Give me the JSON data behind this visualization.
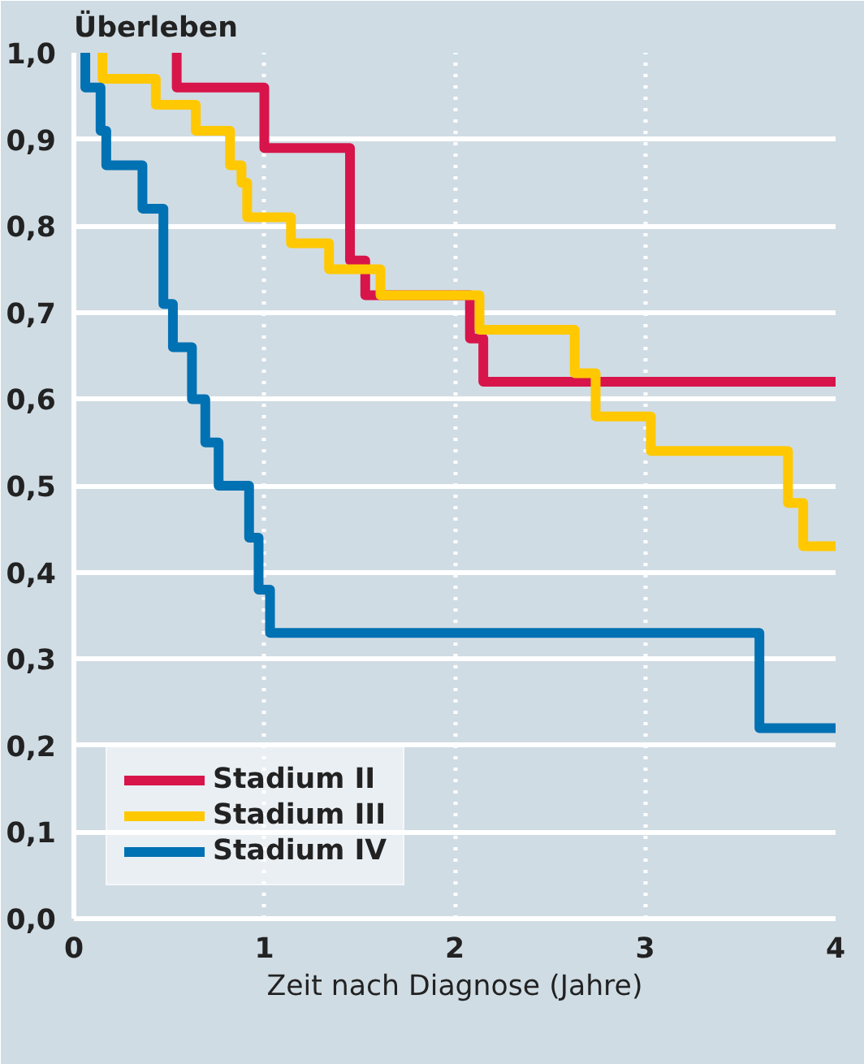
{
  "chart_data": {
    "type": "step",
    "ylabel": "Überleben",
    "xlabel": "Zeit nach Diagnose (Jahre)",
    "xlim": [
      0,
      4
    ],
    "xticks": [
      0,
      1,
      2,
      3,
      4
    ],
    "ylim": [
      0,
      1.0
    ],
    "yticks": [
      {
        "value": 0,
        "label": "0,0"
      },
      {
        "value": 0.1,
        "label": "0,1"
      },
      {
        "value": 0.2,
        "label": "0,2"
      },
      {
        "value": 0.3,
        "label": "0,3"
      },
      {
        "value": 0.4,
        "label": "0,4"
      },
      {
        "value": 0.5,
        "label": "0,5"
      },
      {
        "value": 0.6,
        "label": "0,6"
      },
      {
        "value": 0.7,
        "label": "0,7"
      },
      {
        "value": 0.8,
        "label": "0,8"
      },
      {
        "value": 0.9,
        "label": "0,9"
      },
      {
        "value": 1.0,
        "label": "1,0"
      }
    ],
    "grid": true,
    "legend": "bottom left",
    "line_style": "solid",
    "series": [
      {
        "name": "Stadium II",
        "color": "#d7154b",
        "x": [
          0.54,
          0.54,
          1.0,
          1.45,
          1.53,
          2.08,
          2.15,
          4.0
        ],
        "values": [
          1.0,
          0.96,
          0.89,
          0.76,
          0.72,
          0.67,
          0.62,
          0.62
        ]
      },
      {
        "name": "Stadium III",
        "color": "#ffc800",
        "x": [
          0.15,
          0.15,
          0.43,
          0.64,
          0.82,
          0.88,
          0.91,
          1.14,
          1.34,
          1.61,
          2.13,
          2.63,
          2.74,
          3.03,
          3.75,
          3.83,
          4.0
        ],
        "values": [
          1.0,
          0.97,
          0.94,
          0.91,
          0.87,
          0.85,
          0.81,
          0.78,
          0.75,
          0.72,
          0.68,
          0.63,
          0.58,
          0.54,
          0.48,
          0.43,
          0.43
        ]
      },
      {
        "name": "Stadium IV",
        "color": "#0071b3",
        "x": [
          0.06,
          0.06,
          0.14,
          0.17,
          0.36,
          0.47,
          0.52,
          0.62,
          0.69,
          0.76,
          0.92,
          0.97,
          1.03,
          3.6,
          4.0
        ],
        "values": [
          1.0,
          0.96,
          0.91,
          0.87,
          0.82,
          0.71,
          0.66,
          0.6,
          0.55,
          0.5,
          0.44,
          0.38,
          0.33,
          0.22,
          0.22
        ]
      }
    ]
  }
}
